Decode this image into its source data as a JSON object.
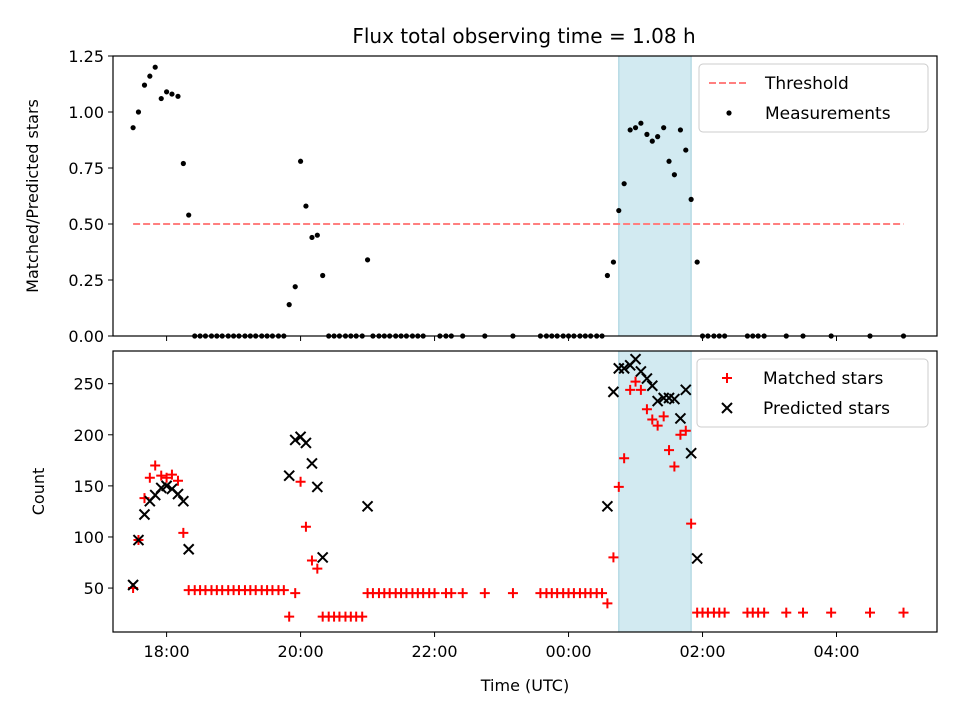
{
  "title": "Flux total observing time = 1.08 h",
  "colors": {
    "threshold": "#ff7f7f",
    "measurements": "#000000",
    "matched": "#ff0000",
    "predicted": "#000000",
    "highlight": "#add8e6"
  },
  "chart_data": [
    {
      "type": "scatter",
      "ylabel": "Matched/Predicted stars",
      "ylim": [
        0,
        1.25
      ],
      "yticks": [
        "0.00",
        "0.25",
        "0.50",
        "0.75",
        "1.00",
        "1.25"
      ],
      "xlim": [
        17.2,
        29.5
      ],
      "x_unit": "hours UTC (values > 24 are next day)",
      "highlight_span": [
        24.75,
        25.83
      ],
      "legend": {
        "position": "top-right",
        "entries": [
          "Threshold",
          "Measurements"
        ]
      },
      "threshold": {
        "name": "Threshold",
        "value": 0.5,
        "x_range": [
          17.5,
          29.0
        ]
      },
      "series": [
        {
          "name": "Measurements",
          "marker": "dot",
          "points": [
            [
              17.5,
              0.93
            ],
            [
              17.58,
              1.0
            ],
            [
              17.67,
              1.12
            ],
            [
              17.75,
              1.16
            ],
            [
              17.83,
              1.2
            ],
            [
              17.92,
              1.06
            ],
            [
              18.0,
              1.09
            ],
            [
              18.08,
              1.08
            ],
            [
              18.17,
              1.07
            ],
            [
              18.25,
              0.77
            ],
            [
              18.33,
              0.54
            ],
            [
              18.42,
              0
            ],
            [
              18.5,
              0
            ],
            [
              18.58,
              0
            ],
            [
              18.67,
              0
            ],
            [
              18.75,
              0
            ],
            [
              18.83,
              0
            ],
            [
              18.92,
              0
            ],
            [
              19.0,
              0
            ],
            [
              19.08,
              0
            ],
            [
              19.17,
              0
            ],
            [
              19.25,
              0
            ],
            [
              19.33,
              0
            ],
            [
              19.42,
              0
            ],
            [
              19.5,
              0
            ],
            [
              19.58,
              0
            ],
            [
              19.67,
              0
            ],
            [
              19.75,
              0
            ],
            [
              19.83,
              0.14
            ],
            [
              19.92,
              0.22
            ],
            [
              20.0,
              0.78
            ],
            [
              20.08,
              0.58
            ],
            [
              20.17,
              0.44
            ],
            [
              20.25,
              0.45
            ],
            [
              20.33,
              0.27
            ],
            [
              20.42,
              0
            ],
            [
              20.5,
              0
            ],
            [
              20.58,
              0
            ],
            [
              20.67,
              0
            ],
            [
              20.75,
              0
            ],
            [
              20.83,
              0
            ],
            [
              20.92,
              0
            ],
            [
              21.0,
              0.34
            ],
            [
              21.08,
              0
            ],
            [
              21.17,
              0
            ],
            [
              21.25,
              0
            ],
            [
              21.33,
              0
            ],
            [
              21.42,
              0
            ],
            [
              21.5,
              0
            ],
            [
              21.58,
              0
            ],
            [
              21.67,
              0
            ],
            [
              21.75,
              0
            ],
            [
              21.83,
              0
            ],
            [
              22.08,
              0
            ],
            [
              22.17,
              0
            ],
            [
              22.25,
              0
            ],
            [
              22.42,
              0
            ],
            [
              22.75,
              0
            ],
            [
              23.17,
              0
            ],
            [
              23.58,
              0
            ],
            [
              23.67,
              0
            ],
            [
              23.75,
              0
            ],
            [
              23.83,
              0
            ],
            [
              23.92,
              0
            ],
            [
              24.0,
              0
            ],
            [
              24.08,
              0
            ],
            [
              24.17,
              0
            ],
            [
              24.25,
              0
            ],
            [
              24.33,
              0
            ],
            [
              24.42,
              0
            ],
            [
              24.5,
              0
            ],
            [
              24.58,
              0.27
            ],
            [
              24.67,
              0.33
            ],
            [
              24.75,
              0.56
            ],
            [
              24.83,
              0.68
            ],
            [
              24.92,
              0.92
            ],
            [
              25.0,
              0.93
            ],
            [
              25.08,
              0.95
            ],
            [
              25.17,
              0.9
            ],
            [
              25.25,
              0.87
            ],
            [
              25.33,
              0.89
            ],
            [
              25.42,
              0.93
            ],
            [
              25.5,
              0.78
            ],
            [
              25.58,
              0.72
            ],
            [
              25.67,
              0.92
            ],
            [
              25.75,
              0.83
            ],
            [
              25.83,
              0.61
            ],
            [
              25.92,
              0.33
            ],
            [
              26.0,
              0
            ],
            [
              26.08,
              0
            ],
            [
              26.17,
              0
            ],
            [
              26.25,
              0
            ],
            [
              26.33,
              0
            ],
            [
              26.67,
              0
            ],
            [
              26.75,
              0
            ],
            [
              26.83,
              0
            ],
            [
              26.92,
              0
            ],
            [
              27.25,
              0
            ],
            [
              27.5,
              0
            ],
            [
              27.92,
              0
            ],
            [
              28.5,
              0
            ],
            [
              29.0,
              0
            ]
          ]
        }
      ]
    },
    {
      "type": "scatter",
      "xlabel": "Time (UTC)",
      "ylabel": "Count",
      "ylim": [
        7,
        282
      ],
      "yticks": [
        "50",
        "100",
        "150",
        "200",
        "250"
      ],
      "xlim": [
        17.2,
        29.5
      ],
      "xticks": [
        "18:00",
        "20:00",
        "22:00",
        "00:00",
        "02:00",
        "04:00"
      ],
      "highlight_span": [
        24.75,
        25.83
      ],
      "legend": {
        "position": "top-right",
        "entries": [
          "Matched stars",
          "Predicted stars"
        ]
      },
      "series": [
        {
          "name": "Matched stars",
          "marker": "plus",
          "points": [
            [
              17.5,
              50
            ],
            [
              17.58,
              97
            ],
            [
              17.67,
              138
            ],
            [
              17.75,
              158
            ],
            [
              17.83,
              170
            ],
            [
              17.92,
              160
            ],
            [
              18.0,
              158
            ],
            [
              18.08,
              161
            ],
            [
              18.17,
              155
            ],
            [
              18.25,
              104
            ],
            [
              18.33,
              48
            ],
            [
              18.42,
              48
            ],
            [
              18.5,
              48
            ],
            [
              18.58,
              48
            ],
            [
              18.67,
              48
            ],
            [
              18.75,
              48
            ],
            [
              18.83,
              48
            ],
            [
              18.92,
              48
            ],
            [
              19.0,
              48
            ],
            [
              19.08,
              48
            ],
            [
              19.17,
              48
            ],
            [
              19.25,
              48
            ],
            [
              19.33,
              48
            ],
            [
              19.42,
              48
            ],
            [
              19.5,
              48
            ],
            [
              19.58,
              48
            ],
            [
              19.67,
              48
            ],
            [
              19.75,
              48
            ],
            [
              19.83,
              22
            ],
            [
              19.92,
              45
            ],
            [
              20.0,
              154
            ],
            [
              20.08,
              110
            ],
            [
              20.17,
              77
            ],
            [
              20.25,
              69
            ],
            [
              20.33,
              22
            ],
            [
              20.42,
              22
            ],
            [
              20.5,
              22
            ],
            [
              20.58,
              22
            ],
            [
              20.67,
              22
            ],
            [
              20.75,
              22
            ],
            [
              20.83,
              22
            ],
            [
              20.92,
              22
            ],
            [
              21.0,
              45
            ],
            [
              21.08,
              45
            ],
            [
              21.17,
              45
            ],
            [
              21.25,
              45
            ],
            [
              21.33,
              45
            ],
            [
              21.42,
              45
            ],
            [
              21.5,
              45
            ],
            [
              21.58,
              45
            ],
            [
              21.67,
              45
            ],
            [
              21.75,
              45
            ],
            [
              21.83,
              45
            ],
            [
              21.92,
              45
            ],
            [
              22.0,
              45
            ],
            [
              22.17,
              45
            ],
            [
              22.25,
              45
            ],
            [
              22.42,
              45
            ],
            [
              22.75,
              45
            ],
            [
              23.17,
              45
            ],
            [
              23.58,
              45
            ],
            [
              23.67,
              45
            ],
            [
              23.75,
              45
            ],
            [
              23.83,
              45
            ],
            [
              23.92,
              45
            ],
            [
              24.0,
              45
            ],
            [
              24.08,
              45
            ],
            [
              24.17,
              45
            ],
            [
              24.25,
              45
            ],
            [
              24.33,
              45
            ],
            [
              24.42,
              45
            ],
            [
              24.5,
              45
            ],
            [
              24.58,
              35
            ],
            [
              24.67,
              80
            ],
            [
              24.75,
              149
            ],
            [
              24.83,
              177
            ],
            [
              24.92,
              244
            ],
            [
              25.0,
              252
            ],
            [
              25.08,
              244
            ],
            [
              25.17,
              225
            ],
            [
              25.25,
              215
            ],
            [
              25.33,
              209
            ],
            [
              25.42,
              218
            ],
            [
              25.5,
              185
            ],
            [
              25.58,
              169
            ],
            [
              25.67,
              200
            ],
            [
              25.75,
              204
            ],
            [
              25.83,
              113
            ],
            [
              25.92,
              26
            ],
            [
              26.0,
              26
            ],
            [
              26.08,
              26
            ],
            [
              26.17,
              26
            ],
            [
              26.25,
              26
            ],
            [
              26.33,
              26
            ],
            [
              26.67,
              26
            ],
            [
              26.75,
              26
            ],
            [
              26.83,
              26
            ],
            [
              26.92,
              26
            ],
            [
              27.25,
              26
            ],
            [
              27.5,
              26
            ],
            [
              27.92,
              26
            ],
            [
              28.5,
              26
            ],
            [
              29.0,
              26
            ]
          ]
        },
        {
          "name": "Predicted stars",
          "marker": "x",
          "points": [
            [
              17.5,
              53
            ],
            [
              17.58,
              97
            ],
            [
              17.67,
              122
            ],
            [
              17.75,
              135
            ],
            [
              17.83,
              141
            ],
            [
              17.92,
              148
            ],
            [
              18.0,
              150
            ],
            [
              18.08,
              147
            ],
            [
              18.17,
              142
            ],
            [
              18.25,
              135
            ],
            [
              18.33,
              88
            ],
            [
              19.83,
              160
            ],
            [
              19.92,
              195
            ],
            [
              20.0,
              198
            ],
            [
              20.08,
              192
            ],
            [
              20.17,
              172
            ],
            [
              20.25,
              149
            ],
            [
              20.33,
              80
            ],
            [
              21.0,
              130
            ],
            [
              24.58,
              130
            ],
            [
              24.67,
              242
            ],
            [
              24.75,
              265
            ],
            [
              24.83,
              265
            ],
            [
              24.92,
              268
            ],
            [
              25.0,
              274
            ],
            [
              25.08,
              262
            ],
            [
              25.17,
              255
            ],
            [
              25.25,
              248
            ],
            [
              25.33,
              233
            ],
            [
              25.42,
              236
            ],
            [
              25.5,
              236
            ],
            [
              25.58,
              235
            ],
            [
              25.67,
              216
            ],
            [
              25.75,
              244
            ],
            [
              25.83,
              182
            ],
            [
              25.92,
              79
            ]
          ]
        }
      ]
    }
  ]
}
